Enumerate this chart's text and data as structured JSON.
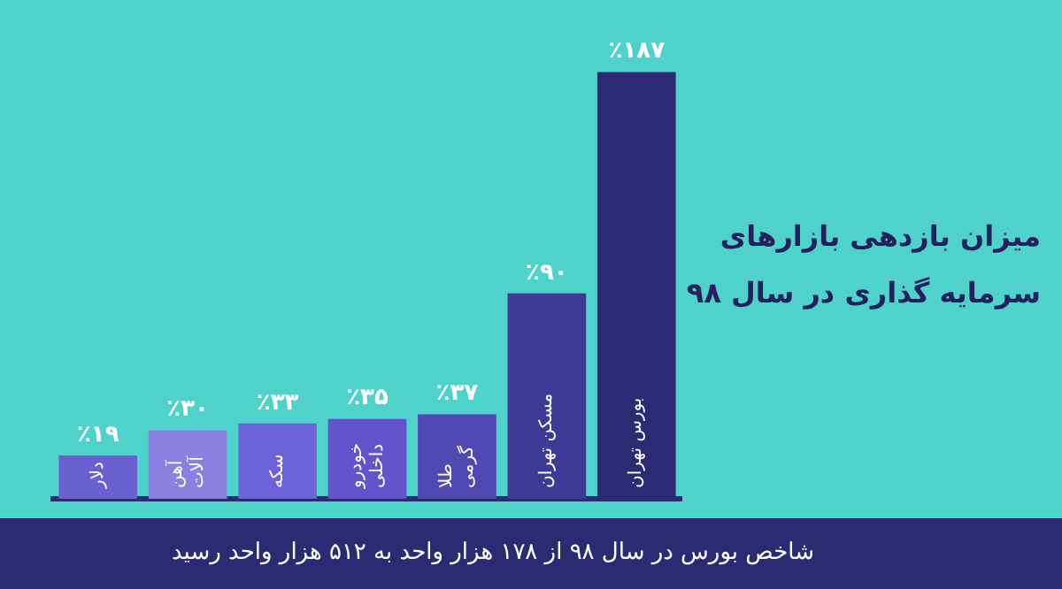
{
  "chart_data": {
    "type": "bar",
    "title": "میزان بازدهی بازارهای سرمایه گذاری در سال ۹۸",
    "categories": [
      "دلار",
      "آهن آلات",
      "سکه",
      "خودرو داخلی",
      "طلا گرمی",
      "مسکن تهران",
      "بورس تهران"
    ],
    "values": [
      19,
      30,
      33,
      35,
      37,
      90,
      187
    ],
    "value_labels": [
      "٪۱۹",
      "٪۳۰",
      "٪۳۳",
      "٪۳۵",
      "٪۳۷",
      "٪۹۰",
      "٪۱۸۷"
    ],
    "colors": [
      "#6a60d2",
      "#8a80e0",
      "#6e62d8",
      "#6254cc",
      "#5248b4",
      "#3e3a96",
      "#2c2a74"
    ],
    "annotations": [
      "شاخص بورس در سال ۹۸ از ۱۷۸ هزار واحد به ۵۱۲ هزار واحد رسید"
    ]
  }
}
